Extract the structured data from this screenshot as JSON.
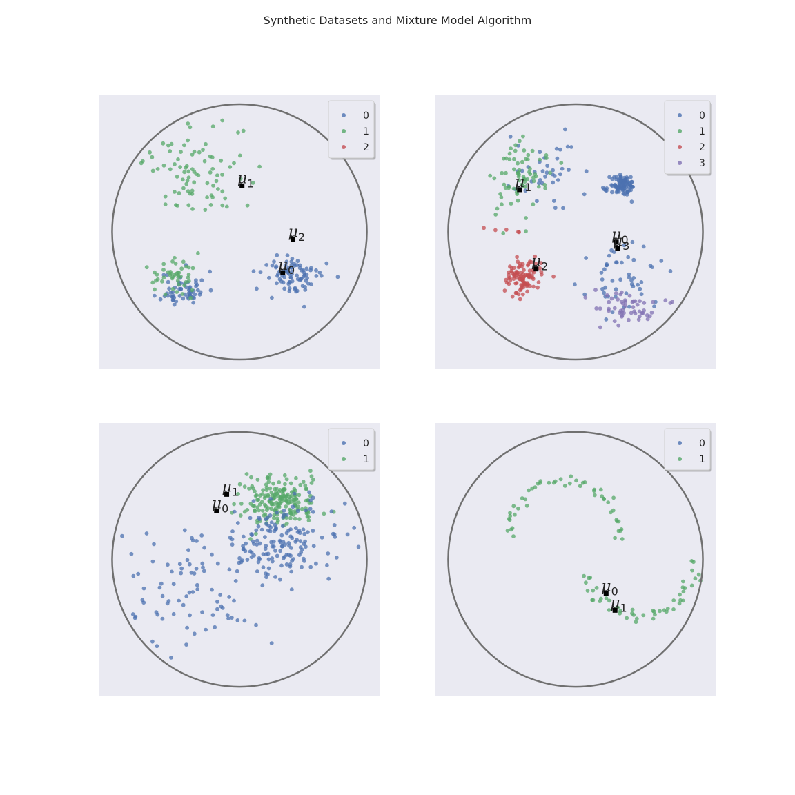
{
  "title": "Synthetic Datasets and Mixture Model Algorithm",
  "colors": {
    "background": "#eaeaf2",
    "circle": "#707070",
    "classes": [
      "#4c72b0",
      "#55a868",
      "#c44e52",
      "#8172b3"
    ],
    "centroid": "#000000"
  },
  "chart_data": [
    {
      "type": "scatter",
      "legend": {
        "labels": [
          "0",
          "1",
          "2"
        ],
        "placement": "top-right"
      },
      "circle": {
        "center": [
          0,
          0
        ],
        "radius": 1
      },
      "xlim": [
        -1.1,
        1.1
      ],
      "ylim": [
        -1.07,
        1.07
      ],
      "centroids": [
        {
          "label": "0",
          "x": 0.34,
          "y": -0.32
        },
        {
          "label": "1",
          "x": 0.02,
          "y": 0.36
        },
        {
          "label": "2",
          "x": 0.42,
          "y": -0.06
        }
      ],
      "clusters": [
        {
          "class": 0,
          "cx": -0.44,
          "cy": -0.45,
          "sx": 0.09,
          "sy": 0.07,
          "n": 60,
          "seed": 11
        },
        {
          "class": 0,
          "cx": 0.43,
          "cy": -0.34,
          "sx": 0.12,
          "sy": 0.08,
          "n": 85,
          "seed": 12
        },
        {
          "class": 1,
          "cx": -0.52,
          "cy": -0.35,
          "sx": 0.09,
          "sy": 0.07,
          "n": 45,
          "seed": 13
        },
        {
          "class": 1,
          "cx": -0.3,
          "cy": 0.48,
          "sx": 0.24,
          "sy": 0.2,
          "n": 85,
          "seed": 14
        }
      ]
    },
    {
      "type": "scatter",
      "legend": {
        "labels": [
          "0",
          "1",
          "2",
          "3"
        ],
        "placement": "top-right"
      },
      "circle": {
        "center": [
          0,
          0
        ],
        "radius": 1
      },
      "xlim": [
        -1.1,
        1.1
      ],
      "ylim": [
        -1.07,
        1.07
      ],
      "centroids": [
        {
          "label": "0",
          "x": 0.32,
          "y": -0.08
        },
        {
          "label": "1",
          "x": -0.44,
          "y": 0.33
        },
        {
          "label": "2",
          "x": -0.31,
          "y": -0.29
        },
        {
          "label": "3",
          "x": 0.33,
          "y": -0.13
        }
      ],
      "clusters": [
        {
          "class": 0,
          "cx": 0.37,
          "cy": 0.36,
          "sx": 0.05,
          "sy": 0.04,
          "n": 95,
          "seed": 21
        },
        {
          "class": 0,
          "cx": -0.25,
          "cy": 0.45,
          "sx": 0.15,
          "sy": 0.14,
          "n": 40,
          "seed": 22
        },
        {
          "class": 0,
          "cx": 0.4,
          "cy": -0.38,
          "sx": 0.15,
          "sy": 0.12,
          "n": 50,
          "seed": 23
        },
        {
          "class": 1,
          "cx": -0.45,
          "cy": 0.4,
          "sx": 0.11,
          "sy": 0.17,
          "n": 70,
          "seed": 24
        },
        {
          "class": 2,
          "cx": -0.4,
          "cy": -0.36,
          "sx": 0.07,
          "sy": 0.06,
          "n": 100,
          "seed": 25
        },
        {
          "class": 2,
          "cx": -0.52,
          "cy": 0.04,
          "sx": 0.1,
          "sy": 0.04,
          "n": 5,
          "seed": 26
        },
        {
          "class": 3,
          "cx": 0.38,
          "cy": -0.58,
          "sx": 0.14,
          "sy": 0.07,
          "n": 55,
          "seed": 27
        }
      ]
    },
    {
      "type": "scatter",
      "legend": {
        "labels": [
          "0",
          "1"
        ],
        "placement": "top-right"
      },
      "circle": {
        "center": [
          0,
          0
        ],
        "radius": 1
      },
      "xlim": [
        -1.1,
        1.1
      ],
      "ylim": [
        -1.07,
        1.07
      ],
      "centroids": [
        {
          "label": "0",
          "x": -0.18,
          "y": 0.38
        },
        {
          "label": "1",
          "x": -0.1,
          "y": 0.51
        }
      ],
      "clusters": [
        {
          "class": 1,
          "cx": 0.3,
          "cy": 0.45,
          "sx": 0.16,
          "sy": 0.1,
          "n": 200,
          "seed": 31
        },
        {
          "class": 0,
          "cx": 0.3,
          "cy": 0.15,
          "sx": 0.24,
          "sy": 0.16,
          "n": 150,
          "seed": 32
        },
        {
          "class": 0,
          "cx": -0.35,
          "cy": -0.25,
          "sx": 0.26,
          "sy": 0.24,
          "n": 90,
          "seed": 33
        }
      ]
    },
    {
      "type": "scatter",
      "legend": {
        "labels": [
          "0",
          "1"
        ],
        "placement": "top-right"
      },
      "circle": {
        "center": [
          0,
          0
        ],
        "radius": 1
      },
      "xlim": [
        -1.1,
        1.1
      ],
      "ylim": [
        -1.07,
        1.07
      ],
      "centroids": [
        {
          "label": "0",
          "x": 0.24,
          "y": -0.27
        },
        {
          "label": "1",
          "x": 0.31,
          "y": -0.4
        }
      ],
      "moons": {
        "class": 1,
        "n": 100,
        "seed": 41,
        "upper": {
          "cx": -0.08,
          "cy": 0.2,
          "r": 0.45,
          "ry": 0.41,
          "from": 3.2,
          "to": -0.1
        },
        "lower": {
          "cx": 0.51,
          "cy": -0.07,
          "r": 0.42,
          "ry": 0.37,
          "from": 3.3,
          "to": 6.33
        }
      }
    }
  ]
}
